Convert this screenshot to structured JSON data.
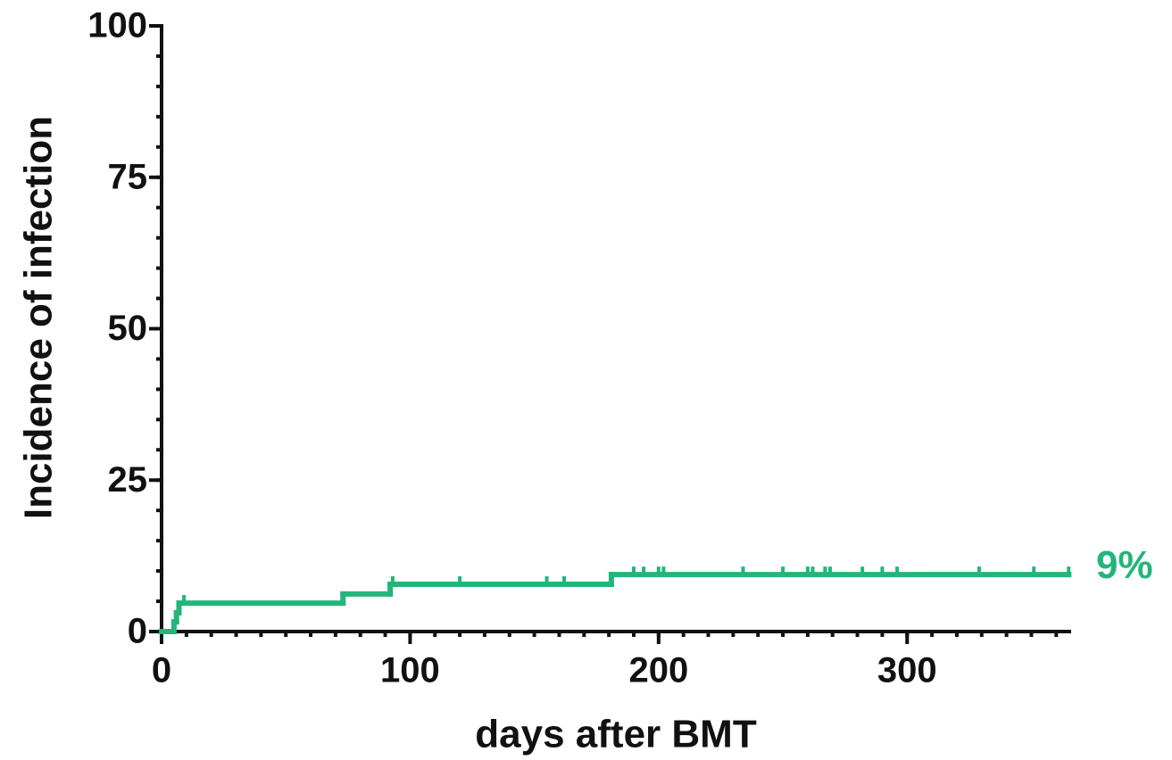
{
  "chart_data": {
    "type": "step",
    "x_label": "days after BMT",
    "y_label": "Incidence of infection",
    "series": [
      {
        "color": "#22b67a",
        "x": [
          0,
          5,
          6,
          7,
          73,
          92,
          181,
          365
        ],
        "values": [
          0,
          1.6,
          3.1,
          4.7,
          6.2,
          7.8,
          9.4,
          9.4
        ],
        "censored_x": [
          9,
          93,
          120,
          155,
          162,
          190,
          194,
          200,
          202,
          234,
          250,
          260,
          262,
          267,
          269,
          282,
          290,
          296,
          329,
          351,
          365
        ],
        "end_label": "9%"
      }
    ],
    "xlim": [
      0,
      366
    ],
    "xticks": [
      0,
      100,
      200,
      300
    ],
    "x_minor_step": 10,
    "ylim": [
      0,
      100
    ],
    "yticks": [
      0,
      25,
      50,
      75,
      100
    ],
    "y_minor_step": 5,
    "grid": false
  }
}
